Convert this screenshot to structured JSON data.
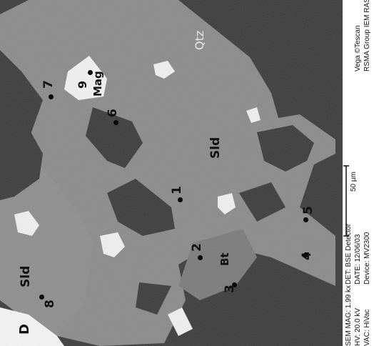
{
  "image": {
    "panel_label": "D",
    "phases": {
      "qtz": "Qtz",
      "sld_right": "Sld",
      "sld_left": "Sld",
      "mag": "Mag",
      "bt": "Bt"
    },
    "points": [
      "1",
      "2",
      "3",
      "4",
      "5",
      "6",
      "7",
      "8",
      "9"
    ],
    "scale_bar": "50 µm",
    "info_left": [
      "SEM MAG: 1.99 kx",
      "HV: 20.0 kV",
      "VAC: HiVac"
    ],
    "info_mid": [
      "DET: BSE Detector",
      "DATE: 12/06/03",
      "Device: MV2300"
    ],
    "info_right": [
      "Vega ©Tescan",
      "RSMA Group IEM RAS"
    ]
  }
}
